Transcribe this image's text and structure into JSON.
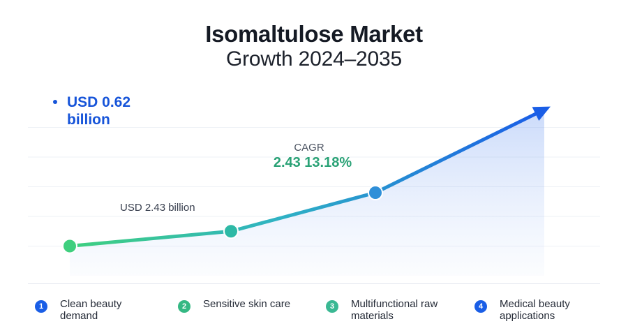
{
  "header": {
    "title": "Isomaltulose Market",
    "subtitle": "Growth 2024–2035"
  },
  "annotations": {
    "end_value_label": "USD 0.62 billion",
    "cagr_label": "CAGR",
    "cagr_value": "2.43 13.18%",
    "start_value_label": "USD 2.43 billion"
  },
  "colors": {
    "line_start": "#3fd07f",
    "line_end": "#1a5ee6",
    "accent_blue": "#1654d9",
    "accent_green": "#2aa276"
  },
  "drivers": [
    {
      "num": "1",
      "label": "Clean beauty demand",
      "color": "#1a5ee6"
    },
    {
      "num": "2",
      "label": "Sensitive skin care",
      "color": "#34b883"
    },
    {
      "num": "3",
      "label": "Multifunctional raw materials",
      "color": "#3ab893"
    },
    {
      "num": "4",
      "label": "Medical beauty applications",
      "color": "#1a5ee6"
    }
  ],
  "chart_data": {
    "type": "line",
    "title": "Isomaltulose Market",
    "subtitle": "Growth 2024–2035",
    "series": [
      {
        "points": [
          [
            0,
            1.0
          ],
          [
            1,
            1.5
          ],
          [
            2,
            2.8
          ],
          [
            3,
            5.6
          ]
        ]
      }
    ],
    "ylim": [
      0,
      6
    ],
    "grid": true,
    "legend": "none",
    "arrow_at_end": true
  }
}
